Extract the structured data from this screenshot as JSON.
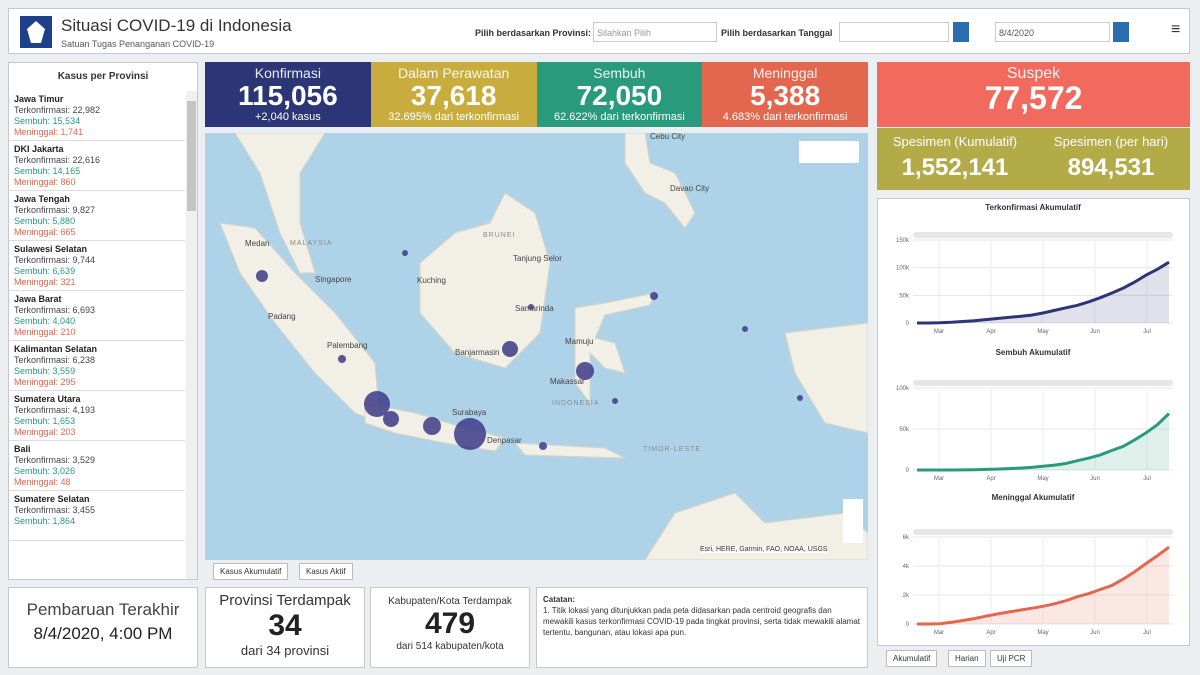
{
  "header": {
    "title": "Situasi COVID-19 di Indonesia",
    "subtitle": "Satuan Tugas Penanganan COVID-19",
    "province_label": "Pilih berdasarkan Provinsi:",
    "province_placeholder": "Silahkan Pilih",
    "date_label": "Pilih berdasarkan Tanggal",
    "date_value": "8/4/2020"
  },
  "province_list": {
    "title": "Kasus per Provinsi",
    "labels": {
      "confirmed": "Terkonfirmasi:",
      "recovered": "Sembuh:",
      "deaths": "Meninggal:"
    },
    "items": [
      {
        "name": "Jawa Timur",
        "confirmed": "22,982",
        "recovered": "15,534",
        "deaths": "1,741"
      },
      {
        "name": "DKI Jakarta",
        "confirmed": "22,616",
        "recovered": "14,165",
        "deaths": "860"
      },
      {
        "name": "Jawa Tengah",
        "confirmed": "9,827",
        "recovered": "5,880",
        "deaths": "665"
      },
      {
        "name": "Sulawesi Selatan",
        "confirmed": "9,744",
        "recovered": "6,639",
        "deaths": "321"
      },
      {
        "name": "Jawa Barat",
        "confirmed": "6,693",
        "recovered": "4,040",
        "deaths": "210"
      },
      {
        "name": "Kalimantan Selatan",
        "confirmed": "6,238",
        "recovered": "3,559",
        "deaths": "295"
      },
      {
        "name": "Sumatera Utara",
        "confirmed": "4,193",
        "recovered": "1,653",
        "deaths": "203"
      },
      {
        "name": "Bali",
        "confirmed": "3,529",
        "recovered": "3,026",
        "deaths": "48"
      },
      {
        "name": "Sumatere Selatan",
        "confirmed": "3,455",
        "recovered": "1,864"
      }
    ]
  },
  "tiles": [
    {
      "label": "Konfirmasi",
      "value": "115,056",
      "note": "+2,040 kasus",
      "color": "#2c3677"
    },
    {
      "label": "Dalam Perawatan",
      "value": "37,618",
      "note": "32.695% dari terkonfirmasi",
      "color": "#c8ad3e"
    },
    {
      "label": "Sembuh",
      "value": "72,050",
      "note": "62.622% dari terkonfirmasi",
      "color": "#2a9a7c"
    },
    {
      "label": "Meninggal",
      "value": "5,388",
      "note": "4.683% dari terkonfirmasi",
      "color": "#e3674e"
    }
  ],
  "suspect": {
    "label": "Suspek",
    "value": "77,572",
    "color": "#f26a5d"
  },
  "specimens": {
    "color": "#b3ab48",
    "cumulative_label": "Spesimen (Kumulatif)",
    "cumulative_value": "1,552,141",
    "daily_label": "Spesimen (per hari)",
    "daily_value": "894,531"
  },
  "map": {
    "labels": [
      "Cebu City",
      "Davao City",
      "MALAYSIA",
      "Medan",
      "BRUNEI",
      "Singapore",
      "Kuching",
      "Tanjung Selor",
      "Padang",
      "Samarinda",
      "Palembang",
      "Banjarmasin",
      "Mamuju",
      "Makassar",
      "INDONESIA",
      "Surabaya",
      "Denpasar",
      "TIMOR-LESTE"
    ],
    "attribution": "Esri, HERE, Garmin, FAO, NOAA, USGS",
    "tabs": [
      "Kasus Akumulatif",
      "Kasus Aktif"
    ]
  },
  "footer": {
    "update_label": "Pembaruan Terakhir",
    "update_value": "8/4/2020, 4:00 PM",
    "provinces": {
      "label": "Provinsi Terdampak",
      "value": "34",
      "note": "dari 34 provinsi"
    },
    "regencies": {
      "label": "Kabupaten/Kota Terdampak",
      "value": "479",
      "note": "dari 514 kabupaten/kota"
    },
    "notes_title": "Catatan:",
    "notes_text": "1. Titik lokasi yang ditunjukkan pada peta didasarkan pada centroid geografis dan mewakili kasus terkonfirmasi COVID-19 pada tingkat provinsi, serta tidak mewakili alamat tertentu, bangunan, atau lokasi apa pun."
  },
  "charts": [
    {
      "type": "line",
      "title": "Terkonfirmasi Akumulatif",
      "color": "#2c3677",
      "xtick_labels": [
        "Mar",
        "Apr",
        "May",
        "Jun",
        "Jul"
      ],
      "ylim": [
        0,
        150000
      ],
      "yticks": [
        0,
        {
          "value": 50000,
          "label": "50k"
        },
        {
          "value": 100000,
          "label": "100k"
        },
        {
          "value": 150000,
          "label": "150k"
        }
      ],
      "values": [
        2,
        19,
        450,
        1300,
        2700,
        4200,
        6200,
        8200,
        10100,
        12000,
        14300,
        18000,
        22700,
        27500,
        32000,
        38300,
        45800,
        54000,
        63000,
        74000,
        86500,
        97300,
        109900
      ]
    },
    {
      "type": "line",
      "title": "Sembuh Akumulatif",
      "color": "#2a9a7c",
      "xtick_labels": [
        "Mar",
        "Apr",
        "May",
        "Jun",
        "Jul"
      ],
      "ylim": [
        0,
        100000
      ],
      "yticks": [
        0,
        {
          "value": 50000,
          "label": "50k"
        },
        {
          "value": 100000,
          "label": "100k"
        }
      ],
      "values": [
        0,
        0,
        20,
        60,
        130,
        360,
        700,
        1100,
        1700,
        2300,
        3200,
        4500,
        6000,
        7900,
        11400,
        14500,
        18400,
        23800,
        28800,
        36700,
        45400,
        55400,
        68900
      ]
    },
    {
      "type": "line",
      "title": "Meninggal Akumulatif",
      "color": "#e3674e",
      "xtick_labels": [
        "Mar",
        "Apr",
        "May",
        "Jun",
        "Jul"
      ],
      "ylim": [
        0,
        6000
      ],
      "yticks": [
        0,
        {
          "value": 2000,
          "label": "2k"
        },
        {
          "value": 4000,
          "label": "4k"
        },
        {
          "value": 6000,
          "label": "6k"
        }
      ],
      "values": [
        0,
        0,
        19,
        120,
        240,
        370,
        540,
        690,
        830,
        960,
        1080,
        1220,
        1390,
        1610,
        1880,
        2100,
        2380,
        2650,
        3100,
        3600,
        4170,
        4720,
        5300
      ]
    }
  ],
  "chart_tabs": [
    "Akumulatif",
    "Harian",
    "Uji PCR"
  ]
}
